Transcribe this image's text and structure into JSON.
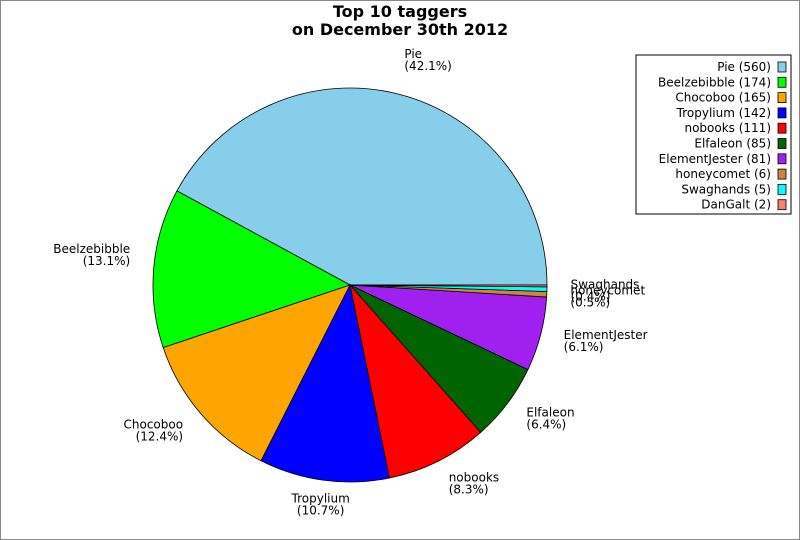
{
  "chart_data": {
    "type": "pie",
    "title": "Top 10 taggers",
    "subtitle": "on December 30th 2012",
    "categories": [
      "Pie",
      "Beelzebibble",
      "Chocoboo",
      "Tropylium",
      "nobooks",
      "Elfaleon",
      "ElementJester",
      "honeycomet",
      "Swaghands",
      "DanGalt"
    ],
    "values": [
      560,
      174,
      165,
      142,
      111,
      85,
      81,
      6,
      5,
      2
    ],
    "percent_labels": [
      "(42.1%)",
      "(13.1%)",
      "(12.4%)",
      "(10.7%)",
      "(8.3%)",
      "(6.4%)",
      "(6.1%)",
      "(0.5%)",
      "(0.4%)",
      null
    ],
    "legend_labels": [
      "Pie (560)",
      "Beelzebibble (174)",
      "Chocoboo (165)",
      "Tropylium (142)",
      "nobooks (111)",
      "Elfaleon (85)",
      "ElementJester (81)",
      "honeycomet (6)",
      "Swaghands (5)",
      "DanGalt (2)"
    ],
    "colors": [
      "#87ceeb",
      "#00ff00",
      "#ffa500",
      "#0000ff",
      "#ff0000",
      "#006400",
      "#a020f0",
      "#cd853f",
      "#00ffff",
      "#fa8072"
    ],
    "legend": "upper right"
  }
}
